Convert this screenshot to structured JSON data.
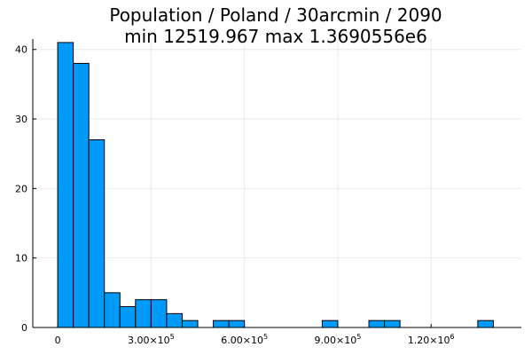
{
  "chart_data": {
    "type": "bar",
    "title_line1": "Population / Poland / 30arcmin / 2090",
    "title_line2": "min 12519.967  max 1.3690556e6",
    "xlabel": "",
    "ylabel": "",
    "bin_width": 50000,
    "bins": [
      {
        "x0": 0,
        "x1": 50000,
        "count": 41
      },
      {
        "x0": 50000,
        "x1": 100000,
        "count": 38
      },
      {
        "x0": 100000,
        "x1": 150000,
        "count": 27
      },
      {
        "x0": 150000,
        "x1": 200000,
        "count": 5
      },
      {
        "x0": 200000,
        "x1": 250000,
        "count": 3
      },
      {
        "x0": 250000,
        "x1": 300000,
        "count": 4
      },
      {
        "x0": 300000,
        "x1": 350000,
        "count": 4
      },
      {
        "x0": 350000,
        "x1": 400000,
        "count": 2
      },
      {
        "x0": 400000,
        "x1": 450000,
        "count": 1
      },
      {
        "x0": 500000,
        "x1": 550000,
        "count": 1
      },
      {
        "x0": 550000,
        "x1": 600000,
        "count": 1
      },
      {
        "x0": 850000,
        "x1": 900000,
        "count": 1
      },
      {
        "x0": 1000000,
        "x1": 1050000,
        "count": 1
      },
      {
        "x0": 1050000,
        "x1": 1100000,
        "count": 1
      },
      {
        "x0": 1350000,
        "x1": 1400000,
        "count": 1
      }
    ],
    "xlim": [
      -80000,
      1490000
    ],
    "ylim": [
      0,
      41.5
    ],
    "x_ticks": [
      {
        "value": 0,
        "mantissa": "0",
        "exponent": ""
      },
      {
        "value": 300000,
        "mantissa": "3.00×10",
        "exponent": "5"
      },
      {
        "value": 600000,
        "mantissa": "6.00×10",
        "exponent": "5"
      },
      {
        "value": 900000,
        "mantissa": "9.00×10",
        "exponent": "5"
      },
      {
        "value": 1200000,
        "mantissa": "1.20×10",
        "exponent": "6"
      }
    ],
    "y_ticks": [
      0,
      10,
      20,
      30,
      40
    ],
    "grid": true,
    "legend": "none",
    "bar_color": "#009AFA"
  }
}
